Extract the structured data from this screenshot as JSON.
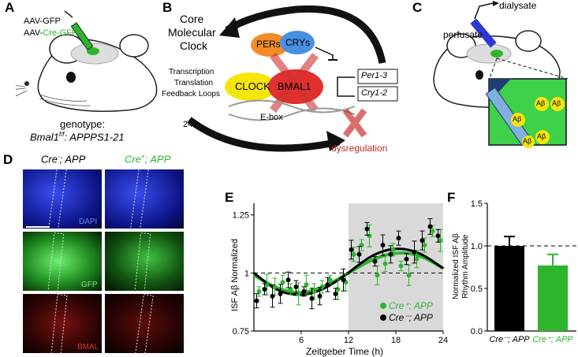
{
  "panels": {
    "a": "A",
    "b": "B",
    "c": "C",
    "d": "D",
    "e": "E",
    "f": "F"
  },
  "panelA": {
    "virus1": "AAV-GFP",
    "virus2_prefix": "AAV-",
    "virus2_highlight": "Cre-GFP",
    "genotype_label": "genotype:",
    "genotype_gene": "Bmal1",
    "genotype_sup": "f/f",
    "genotype_rest": ": APPPS1-21"
  },
  "panelB": {
    "core_title_1": "Core",
    "core_title_2": "Molecular",
    "core_title_3": "Clock",
    "loop_1": "Transcription",
    "loop_2": "Translation",
    "loop_3": "Feedback Loops",
    "pers": "PERs",
    "crys": "CRYs",
    "clock": "CLOCK",
    "bmal1": "BMAL1",
    "per_gene": "Per1-3",
    "cry_gene": "Cry1-2",
    "ebox": "E-box",
    "period": "24 h",
    "dysregulation": "dysregulation"
  },
  "panelC": {
    "dialysate": "dialysate",
    "perfusate": "perfusate",
    "abeta": "Aβ"
  },
  "panelD": {
    "col1_prefix": "Cre",
    "col1_sup": "-",
    "col1_suffix": "; APP",
    "col2_prefix": "Cre",
    "col2_sup": "+",
    "col2_suffix": "; APP",
    "row1_label": "DAPI",
    "row2_label": "GFP",
    "row3_label": "BMAL"
  },
  "colors": {
    "green": "#2db52d",
    "black": "#000000",
    "red": "#d03030",
    "blue": "#1a3dc9",
    "gray_shade": "#d9d9d9"
  },
  "chart_data": [
    {
      "type": "scatter",
      "panel": "E",
      "title": "",
      "xlabel": "Zeitgeber Time (h)",
      "ylabel": "ISF Aβ Normalized",
      "xlim": [
        0,
        24
      ],
      "ylim": [
        0.75,
        1.3
      ],
      "xticks": [
        6,
        12,
        18,
        24
      ],
      "yticks": [
        "0.75",
        "1",
        "1.25"
      ],
      "shaded_region_x": [
        12,
        24
      ],
      "dashed_reference_y": 1,
      "legend_position": "bottom-right",
      "series": [
        {
          "name": "Cre⁺; APP",
          "color": "#2db52d",
          "x": [
            0.5,
            1.5,
            2.5,
            3.5,
            4.5,
            5.5,
            6.5,
            7.5,
            8.5,
            9.5,
            10.5,
            11.5,
            12.5,
            13.5,
            14.5,
            15.5,
            16.5,
            17.5,
            18.5,
            19.5,
            20.5,
            21.5,
            22.5,
            23.5
          ],
          "y": [
            0.92,
            0.95,
            0.94,
            0.96,
            0.93,
            0.91,
            0.95,
            0.92,
            0.94,
            0.97,
            0.93,
            0.96,
            1.08,
            1.12,
            1.16,
            0.99,
            1.04,
            1.1,
            1.03,
            0.99,
            1.06,
            1.12,
            1.18,
            1.14
          ],
          "fit": [
            [
              0,
              0.99
            ],
            [
              3,
              0.93
            ],
            [
              6,
              0.91
            ],
            [
              9,
              0.94
            ],
            [
              12,
              1.0
            ],
            [
              15,
              1.06
            ],
            [
              18,
              1.09
            ],
            [
              21,
              1.08
            ],
            [
              24,
              1.02
            ]
          ]
        },
        {
          "name": "Cre⁻; APP",
          "color": "#000000",
          "x": [
            0.5,
            1.5,
            2.5,
            3.5,
            4.5,
            5.5,
            6.5,
            7.5,
            8.5,
            9.5,
            10.5,
            11.5,
            12.5,
            13.5,
            14.5,
            15.5,
            16.5,
            17.5,
            18.5,
            19.5,
            20.5,
            21.5,
            22.5,
            23.5
          ],
          "y": [
            0.88,
            0.93,
            0.9,
            0.91,
            0.97,
            0.94,
            0.92,
            0.89,
            0.9,
            0.95,
            0.91,
            0.97,
            1.1,
            1.08,
            1.19,
            1.05,
            1.12,
            1.08,
            1.15,
            1.06,
            1.09,
            1.14,
            1.2,
            1.16
          ],
          "fit": [
            [
              0,
              1.0
            ],
            [
              3,
              0.92
            ],
            [
              6,
              0.9
            ],
            [
              9,
              0.93
            ],
            [
              12,
              1.0
            ],
            [
              15,
              1.08
            ],
            [
              18,
              1.11
            ],
            [
              21,
              1.09
            ],
            [
              24,
              1.02
            ]
          ]
        }
      ]
    },
    {
      "type": "bar",
      "panel": "F",
      "title": "",
      "xlabel": "",
      "ylabel_line1": "Normalized ISF Aβ",
      "ylabel_line2": "Rhythm Amplitude",
      "ylim": [
        0,
        1.5
      ],
      "yticks": [
        "0.0",
        "0.5",
        "1.0",
        "1.5"
      ],
      "dashed_reference_y": 1,
      "categories": [
        "Cre⁻; APP",
        "Cre⁺; APP"
      ],
      "values": [
        1.0,
        0.77
      ],
      "errors": [
        0.11,
        0.13
      ],
      "colors": [
        "#000000",
        "#2db52d"
      ]
    }
  ]
}
